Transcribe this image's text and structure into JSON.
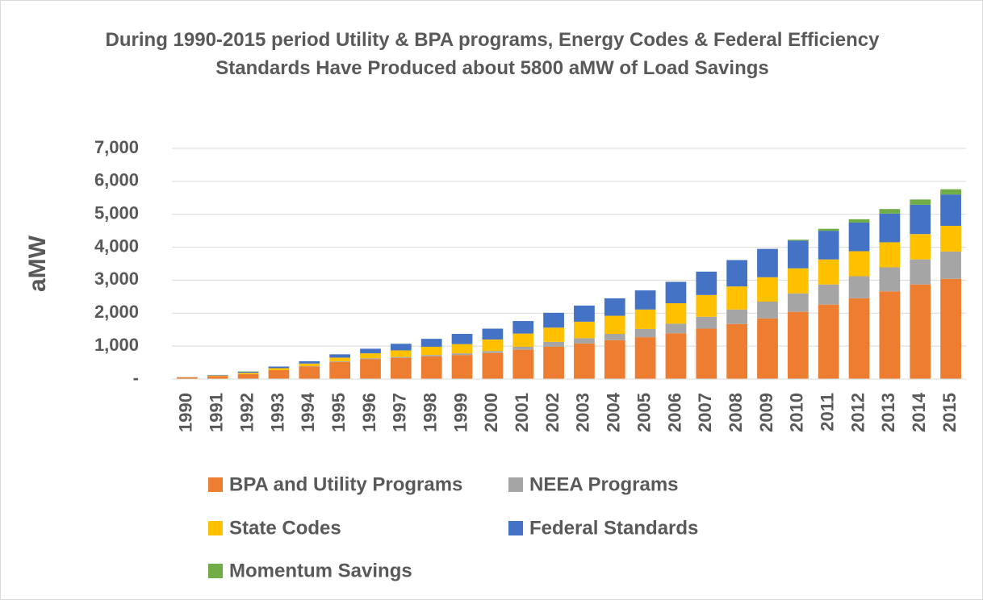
{
  "chart_data": {
    "type": "stacked-bar",
    "title": "During 1990-2015 period Utility & BPA programs, Energy Codes & Federal Efficiency Standards Have Produced about 5800 aMW of Load Savings",
    "y_label": "aMW",
    "categories": [
      "1990",
      "1991",
      "1992",
      "1993",
      "1994",
      "1995",
      "1996",
      "1997",
      "1998",
      "1999",
      "2000",
      "2001",
      "2002",
      "2003",
      "2004",
      "2005",
      "2006",
      "2007",
      "2008",
      "2009",
      "2010",
      "2011",
      "2012",
      "2013",
      "2014",
      "2015"
    ],
    "series": [
      {
        "name": "BPA and Utility Programs",
        "color": "#ed7d31",
        "values": [
          50,
          90,
          150,
          270,
          380,
          520,
          600,
          640,
          690,
          730,
          790,
          890,
          980,
          1080,
          1180,
          1270,
          1390,
          1530,
          1670,
          1840,
          2040,
          2260,
          2450,
          2660,
          2870,
          3040
        ]
      },
      {
        "name": "NEEA Programs",
        "color": "#a5a5a5",
        "values": [
          0,
          0,
          0,
          0,
          10,
          20,
          30,
          30,
          40,
          50,
          60,
          90,
          150,
          160,
          190,
          250,
          290,
          360,
          440,
          510,
          560,
          610,
          670,
          730,
          760,
          830
        ]
      },
      {
        "name": "State Codes",
        "color": "#ffc000",
        "values": [
          5,
          15,
          40,
          60,
          80,
          110,
          150,
          200,
          250,
          280,
          350,
          400,
          430,
          500,
          550,
          590,
          620,
          660,
          700,
          740,
          760,
          760,
          760,
          760,
          770,
          780
        ]
      },
      {
        "name": "Federal Standards",
        "color": "#4472c4",
        "values": [
          5,
          15,
          30,
          50,
          70,
          100,
          140,
          200,
          240,
          310,
          330,
          380,
          450,
          490,
          530,
          580,
          650,
          710,
          800,
          860,
          840,
          870,
          870,
          870,
          890,
          950
        ]
      },
      {
        "name": "Momentum Savings",
        "color": "#70ad47",
        "values": [
          0,
          5,
          10,
          0,
          0,
          0,
          0,
          0,
          0,
          0,
          0,
          0,
          0,
          0,
          0,
          0,
          0,
          0,
          0,
          0,
          30,
          60,
          100,
          140,
          160,
          160
        ]
      }
    ],
    "ylim": [
      0,
      7000
    ],
    "yticks": [
      {
        "value": 0,
        "label": "-"
      },
      {
        "value": 1000,
        "label": "1,000"
      },
      {
        "value": 2000,
        "label": "2,000"
      },
      {
        "value": 3000,
        "label": "3,000"
      },
      {
        "value": 4000,
        "label": "4,000"
      },
      {
        "value": 5000,
        "label": "5,000"
      },
      {
        "value": 6000,
        "label": "6,000"
      },
      {
        "value": 7000,
        "label": "7,000"
      }
    ],
    "grid": true
  }
}
